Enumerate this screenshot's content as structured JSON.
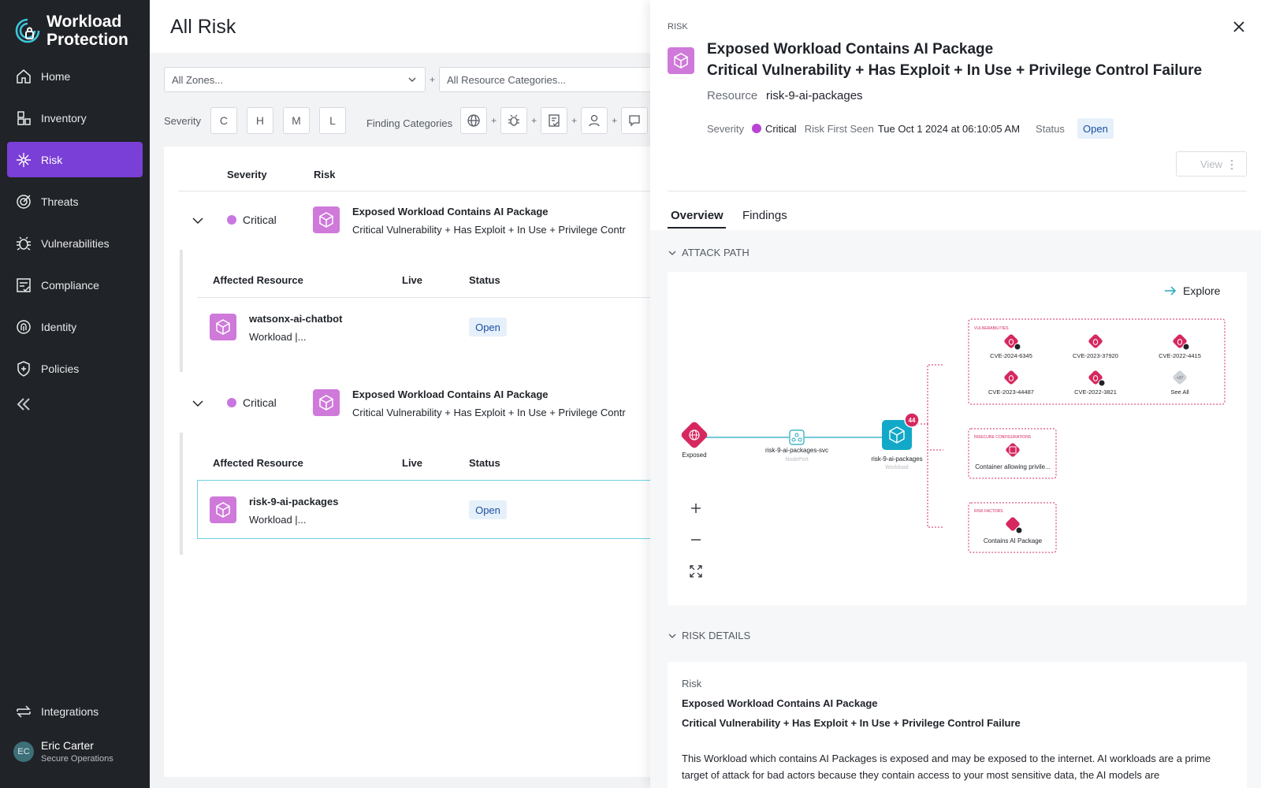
{
  "brand": {
    "line1": "Workload",
    "line2": "Protection"
  },
  "nav": {
    "items": [
      {
        "label": "Home",
        "icon": "home-icon"
      },
      {
        "label": "Inventory",
        "icon": "inventory-icon"
      },
      {
        "label": "Risk",
        "icon": "risk-icon",
        "active": true
      },
      {
        "label": "Threats",
        "icon": "threats-icon"
      },
      {
        "label": "Vulnerabilities",
        "icon": "bug-icon"
      },
      {
        "label": "Compliance",
        "icon": "compliance-icon"
      },
      {
        "label": "Identity",
        "icon": "fingerprint-icon"
      },
      {
        "label": "Policies",
        "icon": "shield-plus-icon"
      }
    ],
    "integrations": "Integrations"
  },
  "user": {
    "initials": "EC",
    "name": "Eric Carter",
    "role": "Secure Operations"
  },
  "main": {
    "title": "All Risk",
    "filters": {
      "zones": "All Zones...",
      "categories": "All Resource Categories..."
    },
    "severity_label": "Severity",
    "severity_chips": [
      "C",
      "H",
      "M",
      "L"
    ],
    "finding_categories_label": "Finding Categories",
    "table": {
      "col_severity": "Severity",
      "col_risk": "Risk",
      "sub_col_resource": "Affected Resource",
      "sub_col_live": "Live",
      "sub_col_status": "Status",
      "rows": [
        {
          "severity": "Critical",
          "title": "Exposed Workload Contains AI Package",
          "subtitle": "Critical Vulnerability + Has Exploit + In Use + Privilege Contr",
          "resource": "watsonx-ai-chatbot",
          "resource_type": "Workload |...",
          "status": "Open"
        },
        {
          "severity": "Critical",
          "title": "Exposed Workload Contains AI Package",
          "subtitle": "Critical Vulnerability + Has Exploit + In Use + Privilege Contr",
          "resource": "risk-9-ai-packages",
          "resource_type": "Workload |...",
          "status": "Open"
        }
      ]
    }
  },
  "drawer": {
    "kicker": "RISK",
    "title1": "Exposed Workload Contains AI Package",
    "title2": "Critical Vulnerability + Has Exploit + In Use + Privilege Control Failure",
    "resource_label": "Resource",
    "resource_value": "risk-9-ai-packages",
    "severity_label": "Severity",
    "severity_value": "Critical",
    "first_seen_label": "Risk First Seen",
    "first_seen_value": "Tue Oct 1 2024 at 06:10:05 AM",
    "status_label": "Status",
    "status_value": "Open",
    "view_button": "View",
    "tabs": [
      "Overview",
      "Findings"
    ],
    "attack_path_header": "ATTACK PATH",
    "risk_details_header": "RISK DETAILS",
    "explore": "Explore",
    "graph": {
      "exposed": "Exposed",
      "svc_name": "risk-9-ai-packages-svc",
      "svc_type": "NodePort",
      "workload_name": "risk-9-ai-packages",
      "workload_type": "Workload",
      "workload_count": "44",
      "vuln_group": "VULNERABILITIES",
      "vulns": [
        "CVE-2024-6345",
        "CVE-2023-37920",
        "CVE-2022-4415",
        "CVE-2023-44487",
        "CVE-2022-3821"
      ],
      "see_all_count": "+37",
      "see_all": "See All",
      "insecure_group": "INSECURE CONFIGURATIONS",
      "insecure_item": "Container allowing privile...",
      "risk_factors_group": "RISK FACTORS",
      "risk_factor_item": "Contains AI Package"
    },
    "details": {
      "label": "Risk",
      "title1": "Exposed Workload Contains AI Package",
      "title2": "Critical Vulnerability + Has Exploit + In Use + Privilege Control Failure",
      "description": "This Workload which contains AI Packages is exposed and may be exposed to the internet. AI workloads are a prime target of attack for bad actors because they contain access to your most sensitive data, the AI models are"
    }
  },
  "colors": {
    "accent": "#7a3fd6",
    "critical": "#c877e0",
    "danger": "#d6285f",
    "workload": "#12a8c8",
    "package": "#cf79da"
  }
}
